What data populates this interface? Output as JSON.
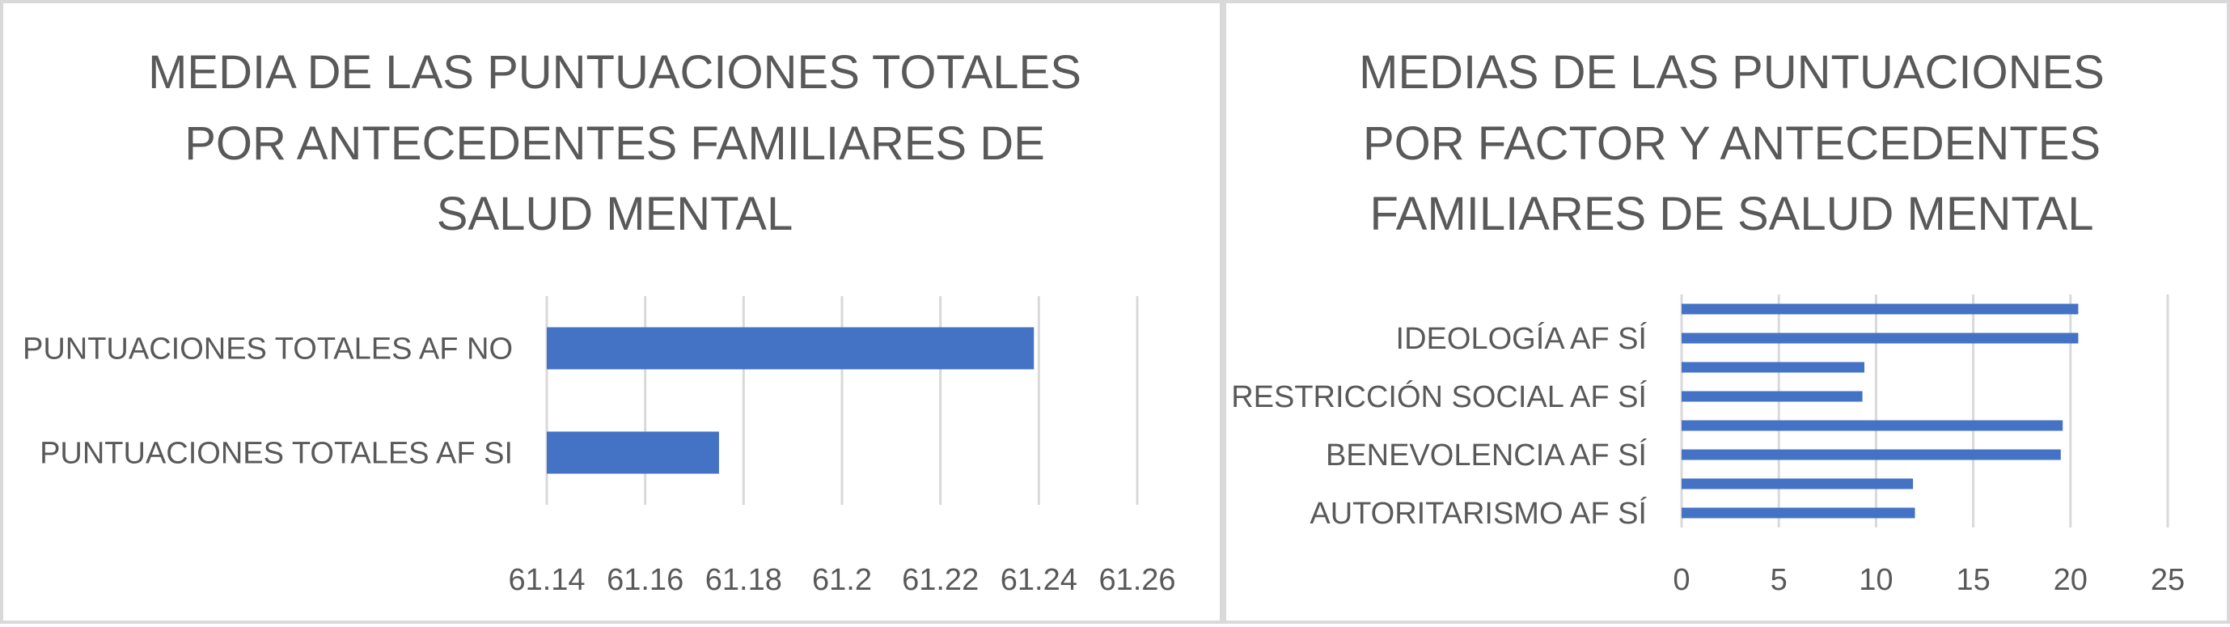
{
  "chart_data": [
    {
      "type": "bar",
      "orientation": "horizontal",
      "title_lines": [
        "MEDIA DE LAS PUNTUACIONES TOTALES",
        "POR ANTECEDENTES FAMILIARES DE",
        "SALUD MENTAL"
      ],
      "categories": [
        "PUNTUACIONES TOTALES AF NO",
        "PUNTUACIONES TOTALES AF SI"
      ],
      "values": [
        61.239,
        61.175
      ],
      "xlim": [
        61.14,
        61.26
      ],
      "xticks": [
        61.14,
        61.16,
        61.18,
        61.2,
        61.22,
        61.24,
        61.26
      ],
      "xtick_labels": [
        "61.14",
        "61.16",
        "61.18",
        "61.2",
        "61.22",
        "61.24",
        "61.26"
      ],
      "grid": true,
      "bar_color": "#4472c4"
    },
    {
      "type": "bar",
      "orientation": "horizontal",
      "title_lines": [
        "MEDIAS DE LAS PUNTUACIONES",
        "POR FACTOR Y ANTECEDENTES",
        "FAMILIARES  DE SALUD MENTAL"
      ],
      "categories": [
        "IDEOLOGÍA AF SÍ",
        "RESTRICCIÓN SOCIAL AF SÍ",
        "BENEVOLENCIA AF SÍ",
        "AUTORITARISMO AF SÍ"
      ],
      "series": [
        {
          "values": [
            20.4,
            9.4,
            19.6,
            11.9
          ]
        },
        {
          "values": [
            20.4,
            9.3,
            19.5,
            12.0
          ]
        }
      ],
      "xlim": [
        0,
        25
      ],
      "xticks": [
        0,
        5,
        10,
        15,
        20,
        25
      ],
      "xtick_labels": [
        "0",
        "5",
        "10",
        "15",
        "20",
        "25"
      ],
      "grid": true,
      "bar_color": "#4472c4"
    }
  ]
}
